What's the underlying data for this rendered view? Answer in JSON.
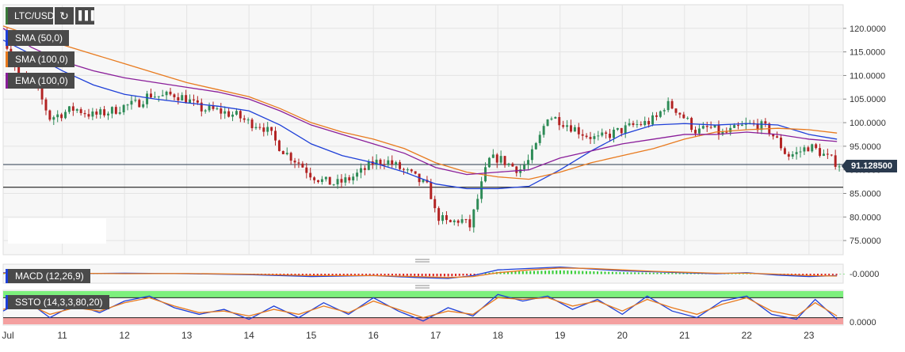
{
  "toolbar": {
    "symbol": "LTC/USD",
    "reload_icon": "reload-icon",
    "chart_type_icon": "bar-chart-icon"
  },
  "overlays": [
    {
      "label": "SMA (50,0)",
      "color": "#1e3fd8"
    },
    {
      "label": "SMA (100,0)",
      "color": "#e87a1e"
    },
    {
      "label": "EMA (100,0)",
      "color": "#8a1e9a"
    }
  ],
  "current_price_label": "91.128500",
  "candle_colors": {
    "up": "#2e8b57",
    "down": "#b22222"
  },
  "chart_data": [
    {
      "type": "candlestick",
      "pair": "LTC/USD",
      "x_tick_labels": [
        "Jul",
        "11",
        "12",
        "13",
        "14",
        "15",
        "16",
        "17",
        "18",
        "19",
        "20",
        "21",
        "22",
        "23"
      ],
      "x_tick_days": [
        10,
        11,
        12,
        13,
        14,
        15,
        16,
        17,
        18,
        19,
        20,
        21,
        22,
        23
      ],
      "x_range_days": [
        10.05,
        23.55
      ],
      "y_tick_labels": [
        "120.0000",
        "115.0000",
        "110.0000",
        "105.0000",
        "100.0000",
        "95.0000",
        "90.0000",
        "85.0000",
        "80.0000",
        "75.0000"
      ],
      "ylim": [
        72,
        125
      ],
      "grid": true,
      "current_price": 91.1285,
      "horizontal_line": 86.3,
      "close_path": [
        [
          10.05,
          119.0
        ],
        [
          10.3,
          110.0
        ],
        [
          10.6,
          107.0
        ],
        [
          10.8,
          101.0
        ],
        [
          11.0,
          102.0
        ],
        [
          11.2,
          103.0
        ],
        [
          11.5,
          101.5
        ],
        [
          11.8,
          102.5
        ],
        [
          12.0,
          103.5
        ],
        [
          12.2,
          104.0
        ],
        [
          12.4,
          106.0
        ],
        [
          12.6,
          105.5
        ],
        [
          12.8,
          106.0
        ],
        [
          13.0,
          105.0
        ],
        [
          13.2,
          103.0
        ],
        [
          13.5,
          102.5
        ],
        [
          13.8,
          101.5
        ],
        [
          14.0,
          100.0
        ],
        [
          14.2,
          99.5
        ],
        [
          14.35,
          97.5
        ],
        [
          14.45,
          95.5
        ],
        [
          14.6,
          93.5
        ],
        [
          14.8,
          91.5
        ],
        [
          15.0,
          89.0
        ],
        [
          15.2,
          87.5
        ],
        [
          15.4,
          87.0
        ],
        [
          15.6,
          88.0
        ],
        [
          15.8,
          89.5
        ],
        [
          16.0,
          91.5
        ],
        [
          16.2,
          92.0
        ],
        [
          16.4,
          90.5
        ],
        [
          16.6,
          89.0
        ],
        [
          16.8,
          87.0
        ],
        [
          16.9,
          86.0
        ],
        [
          17.0,
          80.5
        ],
        [
          17.2,
          78.5
        ],
        [
          17.4,
          79.5
        ],
        [
          17.55,
          78.0
        ],
        [
          17.7,
          85.0
        ],
        [
          17.85,
          92.0
        ],
        [
          18.0,
          92.5
        ],
        [
          18.2,
          91.0
        ],
        [
          18.35,
          90.0
        ],
        [
          18.5,
          92.0
        ],
        [
          18.65,
          96.0
        ],
        [
          18.8,
          101.5
        ],
        [
          19.0,
          100.5
        ],
        [
          19.2,
          99.0
        ],
        [
          19.4,
          97.5
        ],
        [
          19.6,
          96.5
        ],
        [
          19.8,
          97.5
        ],
        [
          20.0,
          98.5
        ],
        [
          20.2,
          99.5
        ],
        [
          20.4,
          100.0
        ],
        [
          20.55,
          101.0
        ],
        [
          20.7,
          104.0
        ],
        [
          20.85,
          103.0
        ],
        [
          21.0,
          101.0
        ],
        [
          21.2,
          98.0
        ],
        [
          21.4,
          99.0
        ],
        [
          21.6,
          97.5
        ],
        [
          21.8,
          98.5
        ],
        [
          22.0,
          99.5
        ],
        [
          22.2,
          99.5
        ],
        [
          22.35,
          98.5
        ],
        [
          22.5,
          96.0
        ],
        [
          22.65,
          93.0
        ],
        [
          22.8,
          93.5
        ],
        [
          23.0,
          95.0
        ],
        [
          23.15,
          94.0
        ],
        [
          23.3,
          92.5
        ],
        [
          23.5,
          91.1285
        ]
      ],
      "series": [
        {
          "name": "SMA (50,0)",
          "color": "#1e3fd8",
          "points": [
            [
              10.05,
              117.5
            ],
            [
              10.5,
              114.5
            ],
            [
              11.0,
              111.0
            ],
            [
              11.5,
              108.0
            ],
            [
              12.0,
              106.0
            ],
            [
              12.5,
              105.0
            ],
            [
              13.0,
              104.2
            ],
            [
              13.5,
              103.5
            ],
            [
              14.0,
              102.5
            ],
            [
              14.5,
              99.5
            ],
            [
              15.0,
              95.5
            ],
            [
              15.5,
              93.0
            ],
            [
              16.0,
              91.5
            ],
            [
              16.5,
              89.5
            ],
            [
              17.0,
              87.0
            ],
            [
              17.5,
              86.0
            ],
            [
              18.0,
              86.0
            ],
            [
              18.5,
              86.5
            ],
            [
              19.0,
              90.0
            ],
            [
              19.5,
              94.0
            ],
            [
              20.0,
              97.5
            ],
            [
              20.5,
              99.5
            ],
            [
              21.0,
              99.8
            ],
            [
              21.5,
              99.5
            ],
            [
              22.0,
              99.8
            ],
            [
              22.5,
              99.5
            ],
            [
              23.0,
              97.5
            ],
            [
              23.45,
              96.5
            ]
          ]
        },
        {
          "name": "SMA (100,0)",
          "color": "#e87a1e",
          "points": [
            [
              10.05,
              120.5
            ],
            [
              10.5,
              118.5
            ],
            [
              11.0,
              116.5
            ],
            [
              11.5,
              114.5
            ],
            [
              12.0,
              112.5
            ],
            [
              12.5,
              110.5
            ],
            [
              13.0,
              108.5
            ],
            [
              13.5,
              107.0
            ],
            [
              14.0,
              105.5
            ],
            [
              14.5,
              103.0
            ],
            [
              15.0,
              100.0
            ],
            [
              15.5,
              98.0
            ],
            [
              16.0,
              96.5
            ],
            [
              16.5,
              94.5
            ],
            [
              17.0,
              91.5
            ],
            [
              17.5,
              89.5
            ],
            [
              18.0,
              88.5
            ],
            [
              18.5,
              88.0
            ],
            [
              19.0,
              89.5
            ],
            [
              19.5,
              91.5
            ],
            [
              20.0,
              93.0
            ],
            [
              20.5,
              94.5
            ],
            [
              21.0,
              96.5
            ],
            [
              21.5,
              98.0
            ],
            [
              22.0,
              98.5
            ],
            [
              22.5,
              98.8
            ],
            [
              23.0,
              98.5
            ],
            [
              23.45,
              97.8
            ]
          ]
        },
        {
          "name": "EMA (100,0)",
          "color": "#8a1e9a",
          "points": [
            [
              10.05,
              120.0
            ],
            [
              10.5,
              116.0
            ],
            [
              11.0,
              113.0
            ],
            [
              11.5,
              111.0
            ],
            [
              12.0,
              109.5
            ],
            [
              12.5,
              108.5
            ],
            [
              13.0,
              107.5
            ],
            [
              13.5,
              106.5
            ],
            [
              14.0,
              105.0
            ],
            [
              14.5,
              102.5
            ],
            [
              15.0,
              99.5
            ],
            [
              15.5,
              97.5
            ],
            [
              16.0,
              95.5
            ],
            [
              16.5,
              93.5
            ],
            [
              17.0,
              90.5
            ],
            [
              17.5,
              89.0
            ],
            [
              18.0,
              89.5
            ],
            [
              18.5,
              90.0
            ],
            [
              19.0,
              92.5
            ],
            [
              19.5,
              94.0
            ],
            [
              20.0,
              95.5
            ],
            [
              20.5,
              96.5
            ],
            [
              21.0,
              97.5
            ],
            [
              21.5,
              97.5
            ],
            [
              22.0,
              98.0
            ],
            [
              22.5,
              97.5
            ],
            [
              23.0,
              96.5
            ],
            [
              23.45,
              96.0
            ]
          ]
        }
      ]
    },
    {
      "type": "line",
      "indicator": "MACD (12,26,9)",
      "y_tick_labels": [
        "-0.0000"
      ],
      "ylim": [
        -1,
        1
      ],
      "series": [
        {
          "name": "MACD",
          "color": "#1e3fd8",
          "points": [
            [
              10.05,
              0.1
            ],
            [
              11.0,
              0.0
            ],
            [
              12.0,
              0.05
            ],
            [
              13.0,
              0.0
            ],
            [
              14.0,
              -0.1
            ],
            [
              15.0,
              -0.3
            ],
            [
              16.0,
              -0.2
            ],
            [
              16.7,
              -0.4
            ],
            [
              17.2,
              -0.5
            ],
            [
              17.6,
              -0.2
            ],
            [
              18.0,
              0.4
            ],
            [
              18.5,
              0.55
            ],
            [
              19.0,
              0.7
            ],
            [
              19.5,
              0.5
            ],
            [
              20.0,
              0.3
            ],
            [
              20.5,
              0.2
            ],
            [
              21.0,
              0.1
            ],
            [
              21.5,
              0.0
            ],
            [
              22.0,
              0.1
            ],
            [
              22.5,
              -0.15
            ],
            [
              23.0,
              -0.3
            ],
            [
              23.45,
              -0.2
            ]
          ]
        },
        {
          "name": "Signal",
          "color": "#e87a1e",
          "points": [
            [
              10.05,
              0.05
            ],
            [
              11.0,
              0.05
            ],
            [
              12.0,
              0.0
            ],
            [
              13.0,
              0.02
            ],
            [
              14.0,
              -0.05
            ],
            [
              15.0,
              -0.2
            ],
            [
              16.0,
              -0.2
            ],
            [
              16.7,
              -0.3
            ],
            [
              17.2,
              -0.4
            ],
            [
              17.6,
              -0.3
            ],
            [
              18.0,
              0.1
            ],
            [
              18.5,
              0.4
            ],
            [
              19.0,
              0.6
            ],
            [
              19.5,
              0.55
            ],
            [
              20.0,
              0.4
            ],
            [
              20.5,
              0.25
            ],
            [
              21.0,
              0.15
            ],
            [
              21.5,
              0.05
            ],
            [
              22.0,
              0.05
            ],
            [
              22.5,
              -0.05
            ],
            [
              23.0,
              -0.2
            ],
            [
              23.45,
              -0.25
            ]
          ]
        }
      ]
    },
    {
      "type": "line",
      "indicator": "SSTO (14,3,3,80,20)",
      "y_tick_labels": [
        "0.0000"
      ],
      "ylim": [
        0,
        100
      ],
      "overbought": 80,
      "oversold": 20,
      "series": [
        {
          "name": "%K",
          "color": "#1e3fd8",
          "points": [
            [
              10.05,
              40
            ],
            [
              10.4,
              75
            ],
            [
              10.8,
              20
            ],
            [
              11.2,
              60
            ],
            [
              11.6,
              35
            ],
            [
              12.0,
              70
            ],
            [
              12.4,
              85
            ],
            [
              12.8,
              50
            ],
            [
              13.2,
              30
            ],
            [
              13.6,
              45
            ],
            [
              14.0,
              15
            ],
            [
              14.4,
              55
            ],
            [
              14.8,
              20
            ],
            [
              15.2,
              65
            ],
            [
              15.6,
              30
            ],
            [
              16.0,
              80
            ],
            [
              16.4,
              40
            ],
            [
              16.8,
              10
            ],
            [
              17.2,
              50
            ],
            [
              17.6,
              25
            ],
            [
              18.0,
              90
            ],
            [
              18.4,
              70
            ],
            [
              18.8,
              85
            ],
            [
              19.2,
              45
            ],
            [
              19.6,
              75
            ],
            [
              20.0,
              30
            ],
            [
              20.4,
              85
            ],
            [
              20.8,
              40
            ],
            [
              21.2,
              20
            ],
            [
              21.6,
              70
            ],
            [
              22.0,
              85
            ],
            [
              22.4,
              30
            ],
            [
              22.8,
              15
            ],
            [
              23.1,
              75
            ],
            [
              23.45,
              15
            ]
          ]
        },
        {
          "name": "%D",
          "color": "#e87a1e",
          "points": [
            [
              10.05,
              45
            ],
            [
              10.4,
              65
            ],
            [
              10.8,
              30
            ],
            [
              11.2,
              50
            ],
            [
              11.6,
              40
            ],
            [
              12.0,
              65
            ],
            [
              12.4,
              80
            ],
            [
              12.8,
              55
            ],
            [
              13.2,
              35
            ],
            [
              13.6,
              40
            ],
            [
              14.0,
              25
            ],
            [
              14.4,
              45
            ],
            [
              14.8,
              30
            ],
            [
              15.2,
              55
            ],
            [
              15.6,
              35
            ],
            [
              16.0,
              70
            ],
            [
              16.4,
              45
            ],
            [
              16.8,
              20
            ],
            [
              17.2,
              40
            ],
            [
              17.6,
              30
            ],
            [
              18.0,
              80
            ],
            [
              18.4,
              75
            ],
            [
              18.8,
              80
            ],
            [
              19.2,
              55
            ],
            [
              19.6,
              70
            ],
            [
              20.0,
              40
            ],
            [
              20.4,
              75
            ],
            [
              20.8,
              50
            ],
            [
              21.2,
              30
            ],
            [
              21.6,
              60
            ],
            [
              22.0,
              80
            ],
            [
              22.4,
              40
            ],
            [
              22.8,
              25
            ],
            [
              23.1,
              65
            ],
            [
              23.45,
              25
            ]
          ]
        }
      ]
    }
  ],
  "indicators": {
    "macd_label": "MACD (12,26,9)",
    "ssto_label": "SSTO (14,3,3,80,20)"
  }
}
